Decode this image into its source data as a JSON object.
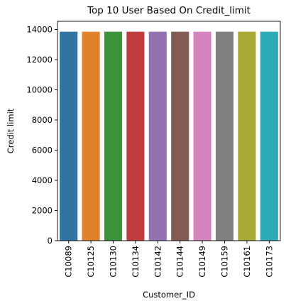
{
  "chart_data": {
    "type": "bar",
    "title": "Top 10 User Based On Credit_limit",
    "xlabel": "Customer_ID",
    "ylabel": "Credit limit",
    "categories": [
      "C10089",
      "C10125",
      "C10130",
      "C10134",
      "C10142",
      "C10144",
      "C10149",
      "C10159",
      "C10161",
      "C10173"
    ],
    "values": [
      13850,
      13850,
      13850,
      13850,
      13850,
      13850,
      13850,
      13850,
      13850,
      13850
    ],
    "colors": [
      "#3274a1",
      "#e1812c",
      "#3a923a",
      "#c03d3e",
      "#9372b2",
      "#845b53",
      "#d684bd",
      "#7f7f7f",
      "#a9aa35",
      "#2eabb8"
    ],
    "ylim": [
      0,
      14540
    ],
    "yticks": [
      0,
      2000,
      4000,
      6000,
      8000,
      10000,
      12000,
      14000
    ],
    "grid": false,
    "legend": "none"
  }
}
